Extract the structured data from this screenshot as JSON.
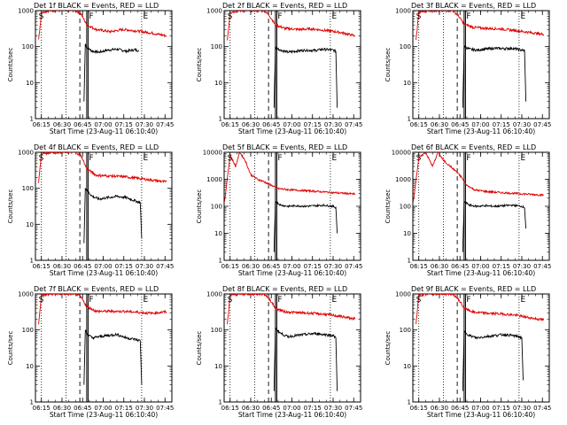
{
  "colors": {
    "events": "#000000",
    "lld": "#e00000",
    "background": "#ffffff"
  },
  "chart_data": [
    {
      "type": "line",
      "title": "Det 1f BLACK = Events, RED = LLD",
      "xlabel": "Start Time (23-Aug-11 06:10:40)",
      "ylabel": "Counts/sec",
      "xlim": [
        "06:10:40",
        "07:50:00"
      ],
      "ylim": [
        1,
        1000
      ],
      "y_scale": "log",
      "x_ticks": [
        "06:15",
        "06:30",
        "06:45",
        "07:00",
        "07:15",
        "07:30",
        "07:45"
      ],
      "y_ticks": [
        "1",
        "10",
        "100",
        "1000"
      ],
      "markers": [
        "S",
        "F",
        "E"
      ],
      "vertical_lines": {
        "dotted": [
          "06:15",
          "06:33",
          "07:28"
        ],
        "dashed": [
          "06:43"
        ],
        "solid": [
          "06:48",
          "06:49"
        ]
      },
      "series": [
        {
          "color": "black",
          "x": [
            "06:46",
            "06:47",
            "06:48",
            "06:52",
            "06:57",
            "07:03",
            "07:10",
            "07:17",
            "07:23",
            "07:26"
          ],
          "y": [
            3,
            120,
            95,
            75,
            70,
            80,
            85,
            75,
            82,
            78
          ]
        },
        {
          "color": "red",
          "x": [
            "06:13",
            "06:15",
            "06:21",
            "06:30",
            "06:40",
            "06:44",
            "06:48",
            "06:55",
            "07:05",
            "07:15",
            "07:25",
            "07:35",
            "07:46"
          ],
          "y": [
            150,
            900,
            1000,
            1000,
            1000,
            800,
            400,
            300,
            260,
            300,
            270,
            240,
            200
          ]
        }
      ]
    },
    {
      "type": "line",
      "title": "Det 2f BLACK = Events, RED = LLD",
      "xlabel": "Start Time (23-Aug-11 06:10:40)",
      "ylabel": "Counts/sec",
      "xlim": [
        "06:10:40",
        "07:50:00"
      ],
      "ylim": [
        1,
        1000
      ],
      "y_scale": "log",
      "x_ticks": [
        "06:15",
        "06:30",
        "06:45",
        "07:00",
        "07:15",
        "07:30",
        "07:45"
      ],
      "y_ticks": [
        "1",
        "10",
        "100",
        "1000"
      ],
      "markers": [
        "S",
        "F",
        "E"
      ],
      "vertical_lines": {
        "dotted": [
          "06:15",
          "06:33",
          "07:28"
        ],
        "dashed": [
          "06:43"
        ],
        "solid": [
          "06:48",
          "06:49"
        ]
      },
      "series": [
        {
          "color": "black",
          "x": [
            "06:47",
            "06:48",
            "06:52",
            "06:57",
            "07:03",
            "07:10",
            "07:17",
            "07:23",
            "07:30",
            "07:32",
            "07:33"
          ],
          "y": [
            2,
            95,
            80,
            70,
            75,
            80,
            78,
            85,
            80,
            75,
            2
          ]
        },
        {
          "color": "red",
          "x": [
            "06:13",
            "06:15",
            "06:22",
            "06:30",
            "06:40",
            "06:44",
            "06:48",
            "06:55",
            "07:05",
            "07:15",
            "07:25",
            "07:35",
            "07:46"
          ],
          "y": [
            150,
            900,
            1000,
            1000,
            1000,
            700,
            400,
            320,
            300,
            310,
            280,
            250,
            200
          ]
        }
      ]
    },
    {
      "type": "line",
      "title": "Det 3f BLACK = Events, RED = LLD",
      "xlabel": "Start Time (23-Aug-11 06:10:40)",
      "ylabel": "Counts/sec",
      "xlim": [
        "06:10:40",
        "07:50:00"
      ],
      "ylim": [
        1,
        1000
      ],
      "y_scale": "log",
      "x_ticks": [
        "06:15",
        "06:30",
        "06:45",
        "07:00",
        "07:15",
        "07:30",
        "07:45"
      ],
      "y_ticks": [
        "1",
        "10",
        "100",
        "1000"
      ],
      "markers": [
        "S",
        "F",
        "E"
      ],
      "vertical_lines": {
        "dotted": [
          "06:15",
          "06:33",
          "07:28"
        ],
        "dashed": [
          "06:43"
        ],
        "solid": [
          "06:48",
          "06:49"
        ]
      },
      "series": [
        {
          "color": "black",
          "x": [
            "06:47",
            "06:48",
            "06:52",
            "06:57",
            "07:03",
            "07:10",
            "07:17",
            "07:23",
            "07:30",
            "07:32",
            "07:33"
          ],
          "y": [
            2,
            100,
            85,
            80,
            85,
            90,
            88,
            90,
            80,
            78,
            3
          ]
        },
        {
          "color": "red",
          "x": [
            "06:13",
            "06:15",
            "06:22",
            "06:30",
            "06:40",
            "06:44",
            "06:48",
            "06:55",
            "07:05",
            "07:15",
            "07:25",
            "07:35",
            "07:46"
          ],
          "y": [
            150,
            900,
            1000,
            1000,
            1000,
            700,
            420,
            340,
            320,
            310,
            280,
            250,
            220
          ]
        }
      ]
    },
    {
      "type": "line",
      "title": "Det 4f BLACK = Events, RED = LLD",
      "xlabel": "Start Time (23-Aug-11 06:10:40)",
      "ylabel": "Counts/sec",
      "xlim": [
        "06:10:40",
        "07:50:00"
      ],
      "ylim": [
        1,
        1000
      ],
      "y_scale": "log",
      "x_ticks": [
        "06:15",
        "06:30",
        "06:45",
        "07:00",
        "07:15",
        "07:30",
        "07:45"
      ],
      "y_ticks": [
        "1",
        "10",
        "100",
        "1000"
      ],
      "markers": [
        "S",
        "F",
        "E"
      ],
      "vertical_lines": {
        "dotted": [
          "06:15",
          "06:33",
          "07:28"
        ],
        "dashed": [
          "06:43"
        ],
        "solid": [
          "06:48",
          "06:49"
        ]
      },
      "series": [
        {
          "color": "black",
          "x": [
            "06:46",
            "06:47",
            "06:48",
            "06:52",
            "06:57",
            "07:03",
            "07:10",
            "07:17",
            "07:23",
            "07:27",
            "07:28"
          ],
          "y": [
            3,
            100,
            90,
            60,
            50,
            55,
            60,
            55,
            45,
            40,
            4
          ]
        },
        {
          "color": "red",
          "x": [
            "06:13",
            "06:15",
            "06:22",
            "06:30",
            "06:40",
            "06:44",
            "06:48",
            "06:55",
            "07:05",
            "07:15",
            "07:25",
            "07:35",
            "07:46"
          ],
          "y": [
            150,
            900,
            1000,
            1000,
            1000,
            800,
            350,
            230,
            220,
            210,
            190,
            170,
            150
          ]
        }
      ]
    },
    {
      "type": "line",
      "title": "Det 5f BLACK = Events, RED = LLD",
      "xlabel": "Start Time (23-Aug-11 06:10:40)",
      "ylabel": "Counts/sec",
      "xlim": [
        "06:10:40",
        "07:50:00"
      ],
      "ylim": [
        1,
        10000
      ],
      "y_scale": "log",
      "x_ticks": [
        "06:15",
        "06:30",
        "06:45",
        "07:00",
        "07:15",
        "07:30",
        "07:45"
      ],
      "y_ticks": [
        "1",
        "10",
        "100",
        "1000",
        "10000"
      ],
      "markers": [
        "S",
        "F",
        "E"
      ],
      "vertical_lines": {
        "dotted": [
          "06:15",
          "06:33",
          "07:28"
        ],
        "dashed": [
          "06:43"
        ],
        "solid": [
          "06:48",
          "06:49"
        ]
      },
      "series": [
        {
          "color": "black",
          "x": [
            "06:47",
            "06:48",
            "06:52",
            "06:57",
            "07:03",
            "07:10",
            "07:17",
            "07:23",
            "07:30",
            "07:32",
            "07:33"
          ],
          "y": [
            2,
            150,
            110,
            100,
            105,
            100,
            105,
            110,
            100,
            90,
            10
          ]
        },
        {
          "color": "red",
          "x": [
            "06:11",
            "06:15",
            "06:19",
            "06:22",
            "06:26",
            "06:30",
            "06:35",
            "06:40",
            "06:45",
            "06:50",
            "07:00",
            "07:10",
            "07:20",
            "07:30",
            "07:40",
            "07:46"
          ],
          "y": [
            150,
            8000,
            3000,
            10000,
            5000,
            1500,
            1000,
            800,
            600,
            450,
            400,
            380,
            350,
            320,
            300,
            280
          ]
        }
      ]
    },
    {
      "type": "line",
      "title": "Det 6f BLACK = Events, RED = LLD",
      "xlabel": "Start Time (23-Aug-11 06:10:40)",
      "ylabel": "Counts/sec",
      "xlim": [
        "06:10:40",
        "07:50:00"
      ],
      "ylim": [
        1,
        10000
      ],
      "y_scale": "log",
      "x_ticks": [
        "06:15",
        "06:30",
        "06:45",
        "07:00",
        "07:15",
        "07:30",
        "07:45"
      ],
      "y_ticks": [
        "1",
        "10",
        "100",
        "1000",
        "10000"
      ],
      "markers": [
        "S",
        "F",
        "E"
      ],
      "vertical_lines": {
        "dotted": [
          "06:15",
          "06:33",
          "07:28"
        ],
        "dashed": [
          "06:43"
        ],
        "solid": [
          "06:48",
          "06:49"
        ]
      },
      "series": [
        {
          "color": "black",
          "x": [
            "06:47",
            "06:48",
            "06:52",
            "06:57",
            "07:03",
            "07:10",
            "07:17",
            "07:23",
            "07:30",
            "07:32",
            "07:33"
          ],
          "y": [
            2,
            150,
            110,
            100,
            105,
            100,
            105,
            110,
            100,
            90,
            15
          ]
        },
        {
          "color": "red",
          "x": [
            "06:11",
            "06:15",
            "06:20",
            "06:25",
            "06:29",
            "06:33",
            "06:38",
            "06:42",
            "06:46",
            "06:50",
            "06:56",
            "07:05",
            "07:15",
            "07:25",
            "07:35",
            "07:46"
          ],
          "y": [
            150,
            6000,
            10000,
            3000,
            10000,
            5000,
            3000,
            2000,
            1200,
            600,
            400,
            350,
            320,
            300,
            280,
            260
          ]
        }
      ]
    },
    {
      "type": "line",
      "title": "Det 7f BLACK = Events, RED = LLD",
      "xlabel": "Start Time (23-Aug-11 06:10:40)",
      "ylabel": "Counts/sec",
      "xlim": [
        "06:10:40",
        "07:50:00"
      ],
      "ylim": [
        1,
        1000
      ],
      "y_scale": "log",
      "x_ticks": [
        "06:15",
        "06:30",
        "06:45",
        "07:00",
        "07:15",
        "07:30",
        "07:45"
      ],
      "y_ticks": [
        "1",
        "10",
        "100",
        "1000"
      ],
      "markers": [
        "S",
        "F",
        "E"
      ],
      "vertical_lines": {
        "dotted": [
          "06:15",
          "06:33",
          "07:28"
        ],
        "dashed": [
          "06:43"
        ],
        "solid": [
          "06:48",
          "06:49"
        ]
      },
      "series": [
        {
          "color": "black",
          "x": [
            "06:46",
            "06:47",
            "06:48",
            "06:52",
            "06:57",
            "07:03",
            "07:10",
            "07:17",
            "07:23",
            "07:27",
            "07:28"
          ],
          "y": [
            3,
            100,
            80,
            60,
            65,
            70,
            75,
            60,
            55,
            50,
            3
          ]
        },
        {
          "color": "red",
          "x": [
            "06:13",
            "06:15",
            "06:22",
            "06:30",
            "06:40",
            "06:44",
            "06:48",
            "06:55",
            "07:05",
            "07:15",
            "07:25",
            "07:35",
            "07:46"
          ],
          "y": [
            150,
            900,
            1000,
            1000,
            1000,
            800,
            450,
            330,
            330,
            330,
            310,
            290,
            320
          ]
        }
      ]
    },
    {
      "type": "line",
      "title": "Det 8f BLACK = Events, RED = LLD",
      "xlabel": "Start Time (23-Aug-11 06:10:40)",
      "ylabel": "Counts/sec",
      "xlim": [
        "06:10:40",
        "07:50:00"
      ],
      "ylim": [
        1,
        1000
      ],
      "y_scale": "log",
      "x_ticks": [
        "06:15",
        "06:30",
        "06:45",
        "07:00",
        "07:15",
        "07:30",
        "07:45"
      ],
      "y_ticks": [
        "1",
        "10",
        "100",
        "1000"
      ],
      "markers": [
        "S",
        "F",
        "E"
      ],
      "vertical_lines": {
        "dotted": [
          "06:15",
          "06:33",
          "07:28"
        ],
        "dashed": [
          "06:43"
        ],
        "solid": [
          "06:48",
          "06:49"
        ]
      },
      "series": [
        {
          "color": "black",
          "x": [
            "06:47",
            "06:48",
            "06:52",
            "06:57",
            "07:03",
            "07:10",
            "07:17",
            "07:23",
            "07:30",
            "07:32",
            "07:33"
          ],
          "y": [
            2,
            110,
            80,
            65,
            70,
            75,
            80,
            75,
            70,
            60,
            2
          ]
        },
        {
          "color": "red",
          "x": [
            "06:13",
            "06:15",
            "06:22",
            "06:30",
            "06:40",
            "06:44",
            "06:48",
            "06:55",
            "07:05",
            "07:15",
            "07:25",
            "07:35",
            "07:46"
          ],
          "y": [
            150,
            900,
            1000,
            1000,
            1000,
            700,
            400,
            320,
            300,
            290,
            270,
            240,
            200
          ]
        }
      ]
    },
    {
      "type": "line",
      "title": "Det 9f BLACK = Events, RED = LLD",
      "xlabel": "Start Time (23-Aug-11 06:10:40)",
      "ylabel": "Counts/sec",
      "xlim": [
        "06:10:40",
        "07:50:00"
      ],
      "ylim": [
        1,
        1000
      ],
      "y_scale": "log",
      "x_ticks": [
        "06:15",
        "06:30",
        "06:45",
        "07:00",
        "07:15",
        "07:30",
        "07:45"
      ],
      "y_ticks": [
        "1",
        "10",
        "100",
        "1000"
      ],
      "markers": [
        "S",
        "F",
        "E"
      ],
      "vertical_lines": {
        "dotted": [
          "06:15",
          "06:33",
          "07:28"
        ],
        "dashed": [
          "06:43"
        ],
        "solid": [
          "06:48",
          "06:49"
        ]
      },
      "series": [
        {
          "color": "black",
          "x": [
            "06:47",
            "06:48",
            "06:52",
            "06:57",
            "07:03",
            "07:10",
            "07:17",
            "07:23",
            "07:28",
            "07:30",
            "07:31"
          ],
          "y": [
            2,
            90,
            70,
            60,
            65,
            70,
            75,
            70,
            65,
            60,
            4
          ]
        },
        {
          "color": "red",
          "x": [
            "06:13",
            "06:15",
            "06:22",
            "06:30",
            "06:40",
            "06:44",
            "06:48",
            "06:55",
            "07:05",
            "07:15",
            "07:25",
            "07:35",
            "07:46"
          ],
          "y": [
            150,
            900,
            1000,
            1000,
            1000,
            700,
            400,
            310,
            290,
            280,
            260,
            220,
            190
          ]
        }
      ]
    }
  ]
}
